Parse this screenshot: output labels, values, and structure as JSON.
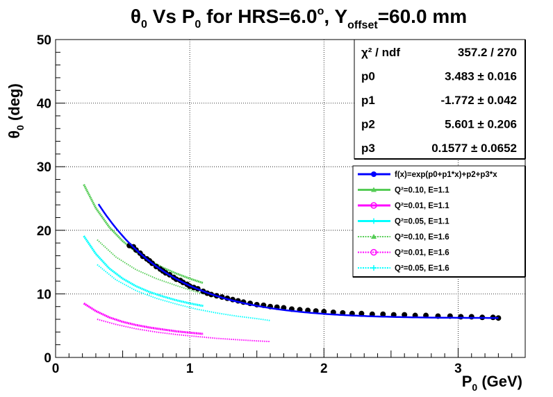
{
  "chart_data": {
    "type": "scatter",
    "title": {
      "theta": "θ",
      "theta_sub": "0",
      "mid": " Vs P",
      "p_sub": "0",
      "hrs": " for HRS=6.0",
      "deg_sup": "o",
      "y": ", Y",
      "y_sub": "offset",
      "end": "=60.0 mm"
    },
    "xlabel": {
      "main": "P",
      "sub": "0",
      "unit": " (GeV)"
    },
    "ylabel": {
      "main": "θ",
      "sub": "0",
      "unit": " (deg)"
    },
    "xlim": [
      0,
      3.5
    ],
    "ylim": [
      0,
      50
    ],
    "x_ticks": [
      "0",
      "1",
      "2",
      "3"
    ],
    "y_ticks": [
      "0",
      "10",
      "20",
      "30",
      "40",
      "50"
    ],
    "grid": true,
    "stats": [
      {
        "name": "χ² / ndf",
        "value": "357.2 / 270"
      },
      {
        "name": "p0",
        "value": "3.483 ± 0.016"
      },
      {
        "name": "p1",
        "value": "-1.772 ± 0.042"
      },
      {
        "name": "p2",
        "value": "5.601 ± 0.206"
      },
      {
        "name": "p3",
        "value": "0.1577 ± 0.0652"
      }
    ],
    "legend_position": "right",
    "legend": [
      "f(x)=exp(p0+p1*x)+p2+p3*x",
      "Q²=0.10, E=1.1",
      "Q²=0.01, E=1.1",
      "Q²=0.05, E=1.1",
      "Q²=0.10, E=1.6",
      "Q²=0.01, E=1.6",
      "Q²=0.05, E=1.6"
    ],
    "colors": {
      "data": "#000000",
      "fit": "#0000ff",
      "q010": "#55cc55",
      "q001": "#ff00ff",
      "q005": "#00ffff"
    },
    "data_points": {
      "x": [
        0.55,
        0.58,
        0.6,
        0.63,
        0.65,
        0.68,
        0.7,
        0.72,
        0.75,
        0.78,
        0.8,
        0.82,
        0.85,
        0.88,
        0.9,
        0.93,
        0.95,
        0.98,
        1.0,
        1.03,
        1.06,
        1.1,
        1.13,
        1.16,
        1.2,
        1.24,
        1.28,
        1.32,
        1.36,
        1.4,
        1.45,
        1.5,
        1.55,
        1.6,
        1.65,
        1.7,
        1.76,
        1.82,
        1.88,
        1.94,
        2.0,
        2.07,
        2.14,
        2.21,
        2.28,
        2.36,
        2.44,
        2.52,
        2.6,
        2.68,
        2.76,
        2.85,
        2.94,
        3.02,
        3.1,
        3.18,
        3.26,
        3.3
      ],
      "y": [
        17.6,
        17.4,
        16.9,
        16.4,
        15.9,
        15.5,
        15.2,
        14.8,
        14.3,
        13.9,
        13.6,
        13.3,
        13.0,
        12.6,
        12.3,
        12.1,
        11.8,
        11.5,
        11.2,
        11.0,
        10.8,
        10.4,
        10.1,
        9.9,
        9.7,
        9.5,
        9.3,
        9.1,
        8.9,
        8.7,
        8.5,
        8.3,
        8.2,
        8.0,
        7.9,
        7.8,
        7.6,
        7.5,
        7.4,
        7.3,
        7.2,
        7.1,
        7.0,
        6.9,
        6.9,
        6.8,
        6.8,
        6.7,
        6.7,
        6.6,
        6.6,
        6.5,
        6.5,
        6.4,
        6.4,
        6.3,
        6.3,
        6.2
      ]
    },
    "fit_params": {
      "p0": 3.483,
      "p1": -1.772,
      "p2": 5.601,
      "p3": 0.1577
    },
    "fit_range": [
      0.32,
      3.3
    ],
    "curves": [
      {
        "name": "Q²=0.10, E=1.1",
        "x": [
          0.21,
          0.3,
          0.4,
          0.5,
          0.6,
          0.7,
          0.8,
          0.9,
          1.0,
          1.1
        ],
        "y": [
          27.2,
          23.5,
          20.5,
          18.3,
          16.6,
          15.2,
          14.1,
          13.2,
          12.4,
          11.7
        ]
      },
      {
        "name": "Q²=0.01, E=1.1",
        "x": [
          0.21,
          0.3,
          0.4,
          0.5,
          0.6,
          0.7,
          0.8,
          0.9,
          1.0,
          1.1
        ],
        "y": [
          8.5,
          7.3,
          6.3,
          5.6,
          5.1,
          4.7,
          4.4,
          4.1,
          3.9,
          3.7
        ]
      },
      {
        "name": "Q²=0.05, E=1.1",
        "x": [
          0.21,
          0.3,
          0.4,
          0.5,
          0.6,
          0.7,
          0.8,
          0.9,
          1.0,
          1.1
        ],
        "y": [
          19.1,
          16.3,
          14.0,
          12.4,
          11.2,
          10.3,
          9.6,
          9.0,
          8.5,
          8.1
        ]
      },
      {
        "name": "Q²=0.10, E=1.6",
        "x": [
          0.31,
          0.45,
          0.6,
          0.75,
          0.9,
          1.05,
          1.2,
          1.35,
          1.5,
          1.6
        ],
        "y": [
          18.5,
          15.8,
          13.8,
          12.4,
          11.3,
          10.3,
          9.5,
          8.8,
          8.2,
          7.9
        ]
      },
      {
        "name": "Q²=0.01, E=1.6",
        "x": [
          0.31,
          0.45,
          0.6,
          0.75,
          0.9,
          1.05,
          1.2,
          1.35,
          1.5,
          1.6
        ],
        "y": [
          6.0,
          5.2,
          4.5,
          4.0,
          3.6,
          3.3,
          3.0,
          2.8,
          2.6,
          2.5
        ]
      },
      {
        "name": "Q²=0.05, E=1.6",
        "x": [
          0.31,
          0.45,
          0.6,
          0.75,
          0.9,
          1.05,
          1.2,
          1.35,
          1.5,
          1.6
        ],
        "y": [
          14.6,
          12.2,
          10.5,
          9.3,
          8.4,
          7.6,
          7.0,
          6.5,
          6.1,
          5.8
        ]
      }
    ]
  }
}
